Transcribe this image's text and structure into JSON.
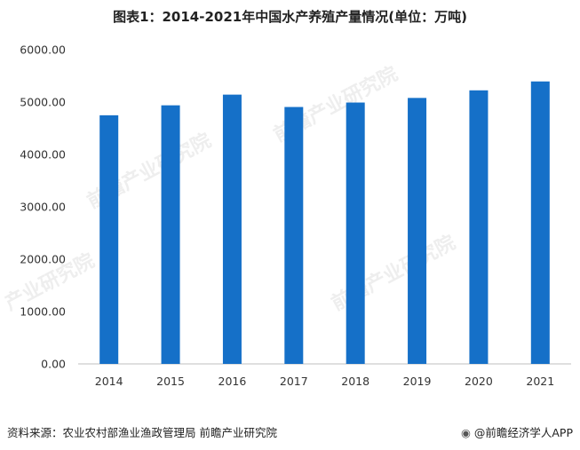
{
  "title": "图表1：2014-2021年中国水产养殖产量情况(单位：万吨)",
  "source": "资料来源：农业农村部渔业渔政管理局 前瞻产业研究院",
  "brand": {
    "icon": "circle-logo-icon",
    "text": "@前瞻经济学人APP"
  },
  "watermarks": [
    "前瞻产业研究院",
    "前瞻产业研究院",
    "前瞻产业研究院",
    "产业研究院"
  ],
  "chart_data": {
    "type": "bar",
    "title": "图表1：2014-2021年中国水产养殖产量情况(单位：万吨)",
    "categories": [
      "2014",
      "2015",
      "2016",
      "2017",
      "2018",
      "2019",
      "2020",
      "2021"
    ],
    "values": [
      4748,
      4938,
      5142,
      4906,
      4991,
      5079,
      5224,
      5394
    ],
    "ylim": [
      0,
      6000
    ],
    "yticks": [
      "0.00",
      "1000.00",
      "2000.00",
      "3000.00",
      "4000.00",
      "5000.00",
      "6000.00"
    ],
    "xlabel": "",
    "ylabel": "",
    "grid": false,
    "bar_color": "#1570C8"
  }
}
